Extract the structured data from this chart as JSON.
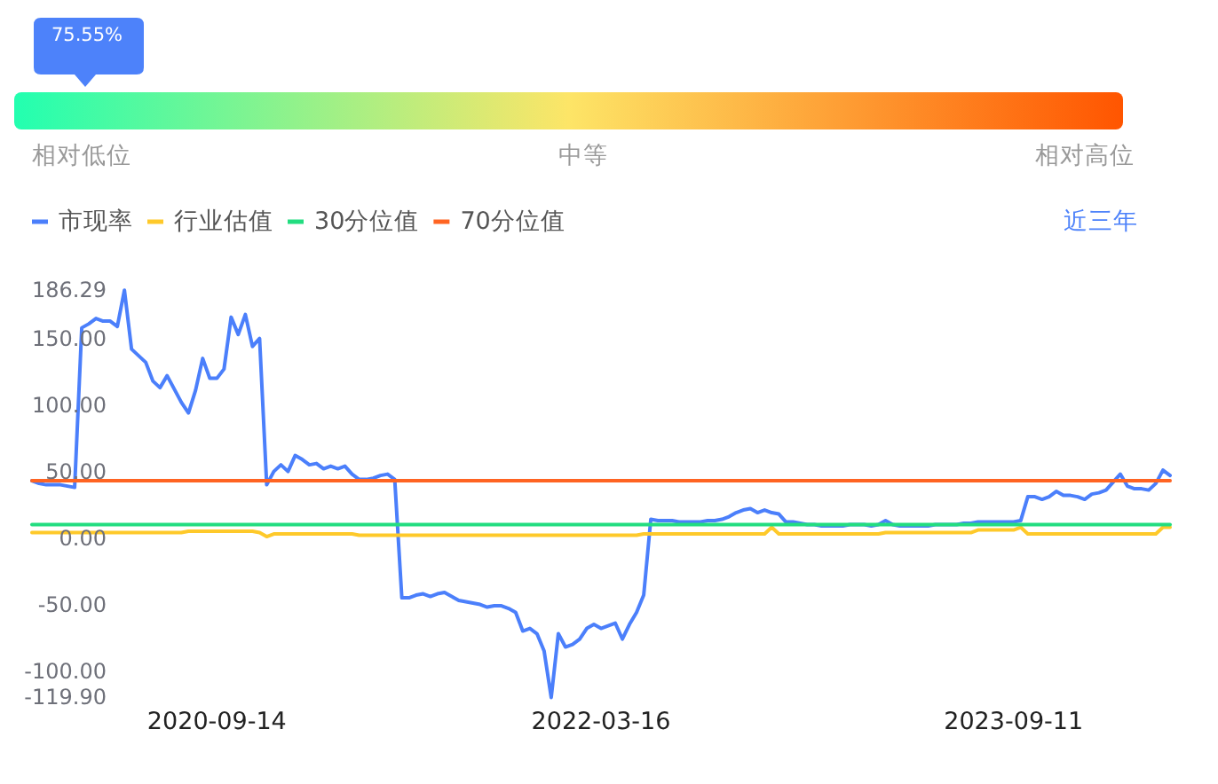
{
  "chart_data": [
    {
      "type": "other",
      "categories": [
        "相对低位",
        "中等",
        "相对高位"
      ],
      "colors": [
        "#22ffb0",
        "#fde567",
        "#ff5500"
      ],
      "color": "#4d82fa",
      "annotations": [
        "75.55%"
      ]
    },
    {
      "type": "line",
      "categories": [
        null,
        null,
        null,
        null,
        null,
        null,
        null,
        null,
        null,
        null,
        null,
        null,
        null,
        null,
        null,
        null,
        null,
        null,
        null,
        null,
        null,
        null,
        null,
        null,
        null,
        null,
        "2020-09-14",
        null,
        null,
        null,
        null,
        null,
        null,
        null,
        null,
        null,
        null,
        null,
        null,
        null,
        null,
        null,
        null,
        null,
        null,
        null,
        null,
        null,
        null,
        null,
        null,
        null,
        null,
        null,
        null,
        null,
        null,
        null,
        null,
        null,
        null,
        null,
        null,
        null,
        null,
        null,
        null,
        null,
        null,
        null,
        null,
        null,
        null,
        null,
        null,
        null,
        null,
        null,
        null,
        null,
        "2022-03-16",
        null,
        null,
        null,
        null,
        null,
        null,
        null,
        null,
        null,
        null,
        null,
        null,
        null,
        null,
        null,
        null,
        null,
        null,
        null,
        null,
        null,
        null,
        null,
        null,
        null,
        null,
        null,
        null,
        null,
        null,
        null,
        null,
        null,
        null,
        null,
        null,
        null,
        null,
        null,
        null,
        null,
        null,
        null,
        null,
        null,
        null,
        null,
        null,
        null,
        null,
        null,
        null,
        null,
        null,
        null,
        null,
        null,
        "2023-09-11",
        null,
        null,
        null,
        null,
        null,
        null,
        null,
        null,
        null,
        null,
        null,
        null,
        null,
        null,
        null,
        null,
        null,
        null,
        null,
        null,
        null,
        null
      ],
      "series": [
        {
          "name": "市现率",
          "color": "#4b7ffb",
          "values": [
            43,
            41,
            40,
            40,
            40,
            39,
            38,
            158,
            161,
            165,
            163,
            163,
            159,
            186.29,
            142,
            137,
            132,
            118,
            113,
            122,
            112,
            102,
            94,
            111,
            135,
            120,
            120,
            127,
            166,
            153,
            168,
            144,
            150,
            40,
            50,
            55,
            50,
            62,
            59,
            55,
            56,
            52,
            54,
            52,
            54,
            48,
            44,
            44,
            45,
            47,
            48,
            44,
            -45,
            -45,
            -43,
            -42,
            -44,
            -42,
            -41,
            -44,
            -47,
            -48,
            -49,
            -50,
            -52,
            -51,
            -51,
            -53,
            -56,
            -70,
            -68,
            -72,
            -85,
            -119.9,
            -72,
            -82,
            -80,
            -76,
            -68,
            -65,
            -68,
            -66,
            -64,
            -76,
            -65,
            -56,
            -43,
            14,
            13,
            13,
            13,
            12,
            12,
            12,
            12,
            13,
            13,
            14,
            16,
            19,
            21,
            22,
            19,
            21,
            19,
            18,
            12,
            12,
            11,
            10,
            10,
            9,
            9,
            9,
            9,
            10,
            10,
            10,
            9,
            10,
            13,
            10,
            9,
            9,
            9,
            9,
            9,
            10,
            10,
            10,
            10,
            11,
            11,
            12,
            12,
            12,
            12,
            12,
            12,
            13,
            31,
            31,
            29,
            31,
            35,
            32,
            32,
            31,
            29,
            33,
            34,
            36,
            42,
            48,
            39,
            37,
            37,
            36,
            41,
            51,
            47
          ]
        },
        {
          "name": "行业估值",
          "color": "#fec92a",
          "values": [
            4,
            4,
            4,
            4,
            4,
            4,
            4,
            4,
            4,
            4,
            4,
            4,
            4,
            4,
            4,
            4,
            4,
            4,
            4,
            4,
            4,
            4,
            5,
            5,
            5,
            5,
            5,
            5,
            5,
            5,
            5,
            5,
            4,
            1,
            3,
            3,
            3,
            3,
            3,
            3,
            3,
            3,
            3,
            3,
            3,
            3,
            2,
            2,
            2,
            2,
            2,
            2,
            2,
            2,
            2,
            2,
            2,
            2,
            2,
            2,
            2,
            2,
            2,
            2,
            2,
            2,
            2,
            2,
            2,
            2,
            2,
            2,
            2,
            2,
            2,
            2,
            2,
            2,
            2,
            2,
            2,
            2,
            2,
            2,
            2,
            2,
            3,
            3,
            3,
            3,
            3,
            3,
            3,
            3,
            3,
            3,
            3,
            3,
            3,
            3,
            3,
            3,
            3,
            3,
            8,
            3,
            3,
            3,
            3,
            3,
            3,
            3,
            3,
            3,
            3,
            3,
            3,
            3,
            3,
            3,
            4,
            4,
            4,
            4,
            4,
            4,
            4,
            4,
            4,
            4,
            4,
            4,
            4,
            6,
            6,
            6,
            6,
            6,
            6,
            8,
            3,
            3,
            3,
            3,
            3,
            3,
            3,
            3,
            3,
            3,
            3,
            3,
            3,
            3,
            3,
            3,
            3,
            3,
            3,
            8,
            8
          ]
        },
        {
          "name": "30分位值",
          "color": "#22dd80",
          "values": [
            10,
            10,
            10,
            10,
            10,
            10,
            10,
            10,
            10,
            10,
            10,
            10,
            10,
            10,
            10,
            10,
            10,
            10,
            10,
            10,
            10,
            10,
            10,
            10,
            10,
            10,
            10,
            10,
            10,
            10,
            10,
            10,
            10,
            10,
            10,
            10,
            10,
            10,
            10,
            10,
            10,
            10,
            10,
            10,
            10,
            10,
            10,
            10,
            10,
            10,
            10,
            10,
            10,
            10,
            10,
            10,
            10,
            10,
            10,
            10,
            10,
            10,
            10,
            10,
            10,
            10,
            10,
            10,
            10,
            10,
            10,
            10,
            10,
            10,
            10,
            10,
            10,
            10,
            10,
            10,
            10,
            10,
            10,
            10,
            10,
            10,
            10,
            10,
            10,
            10,
            10,
            10,
            10,
            10,
            10,
            10,
            10,
            10,
            10,
            10,
            10,
            10,
            10,
            10,
            10,
            10,
            10,
            10,
            10,
            10,
            10,
            10,
            10,
            10,
            10,
            10,
            10,
            10,
            10,
            10,
            10,
            10,
            10,
            10,
            10,
            10,
            10,
            10,
            10,
            10,
            10,
            10,
            10,
            10,
            10,
            10,
            10,
            10,
            10,
            10,
            10,
            10,
            10,
            10,
            10,
            10,
            10,
            10,
            10,
            10,
            10,
            10,
            10,
            10,
            10,
            10,
            10,
            10,
            10,
            10,
            10
          ]
        },
        {
          "name": "70分位值",
          "color": "#ff6422",
          "values": [
            43,
            43,
            43,
            43,
            43,
            43,
            43,
            43,
            43,
            43,
            43,
            43,
            43,
            43,
            43,
            43,
            43,
            43,
            43,
            43,
            43,
            43,
            43,
            43,
            43,
            43,
            43,
            43,
            43,
            43,
            43,
            43,
            43,
            43,
            43,
            43,
            43,
            43,
            43,
            43,
            43,
            43,
            43,
            43,
            43,
            43,
            43,
            43,
            43,
            43,
            43,
            43,
            43,
            43,
            43,
            43,
            43,
            43,
            43,
            43,
            43,
            43,
            43,
            43,
            43,
            43,
            43,
            43,
            43,
            43,
            43,
            43,
            43,
            43,
            43,
            43,
            43,
            43,
            43,
            43,
            43,
            43,
            43,
            43,
            43,
            43,
            43,
            43,
            43,
            43,
            43,
            43,
            43,
            43,
            43,
            43,
            43,
            43,
            43,
            43,
            43,
            43,
            43,
            43,
            43,
            43,
            43,
            43,
            43,
            43,
            43,
            43,
            43,
            43,
            43,
            43,
            43,
            43,
            43,
            43,
            43,
            43,
            43,
            43,
            43,
            43,
            43,
            43,
            43,
            43,
            43,
            43,
            43,
            43,
            43,
            43,
            43,
            43,
            43,
            43,
            43,
            43,
            43,
            43,
            43,
            43,
            43,
            43,
            43,
            43,
            43,
            43,
            43,
            43,
            43,
            43,
            43,
            43,
            43,
            43,
            43
          ]
        }
      ],
      "ylim": [
        -119.9,
        186.29
      ],
      "yticks": [
        186.29,
        {
          "value": 150,
          "label": "150.00"
        },
        {
          "value": 100,
          "label": "100.00"
        },
        {
          "value": 50,
          "label": "50.00"
        },
        {
          "value": 0,
          "label": "0.00"
        },
        {
          "value": -50,
          "label": "-50.00"
        },
        {
          "value": -100,
          "label": "-100.00"
        },
        {
          "value": -119.9,
          "label": "-119.90"
        }
      ],
      "legend": "top left",
      "annotations": [
        "近三年"
      ]
    }
  ]
}
